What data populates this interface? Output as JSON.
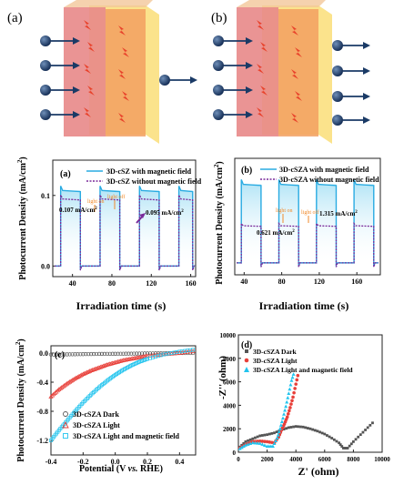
{
  "schematics": [
    {
      "label": "(a)",
      "transmitted_electrons": 1
    },
    {
      "label": "(b)",
      "transmitted_electrons": 4
    }
  ],
  "colors": {
    "layer_red": "#e88888",
    "layer_orange": "#f2a060",
    "layer_yellow": "#fbe38c",
    "electron": "#1a3a66",
    "lightning": "#e8412a",
    "line_cyan": "#29abe2",
    "line_purple": "#7a2a9a",
    "light_on": "#f08a2a",
    "dark_gray": "#555555",
    "light_red": "#e8403a",
    "light_mag_cyan": "#22c4ee"
  },
  "chart_data": [
    {
      "id": "a",
      "type": "line",
      "panel_label": "(a)",
      "xlabel": "Irradiation time (s)",
      "ylabel": "Photocurrent Density (mA/cm²)",
      "xlim": [
        20,
        165
      ],
      "ylim": [
        -0.015,
        0.15
      ],
      "xticks": [
        40,
        80,
        120,
        160
      ],
      "yticks": [
        0.0,
        0.1
      ],
      "ytick_labels": [
        "0.0",
        "0.1"
      ],
      "legend": [
        "3D-cSZ with magnetic field",
        "3D-cSZ without magnetic field"
      ],
      "light_periods": [
        [
          28,
          48
        ],
        [
          68,
          88
        ],
        [
          108,
          128
        ],
        [
          148,
          162
        ]
      ],
      "series": [
        {
          "name": "3D-cSZ with magnetic field",
          "on_level": 0.107,
          "off_level": 0.0
        },
        {
          "name": "3D-cSZ without magnetic field",
          "on_level": 0.095,
          "off_level": 0.0
        }
      ],
      "annotations": [
        "0.107 mA/cm",
        "0.095 mA/cm",
        "light on",
        "light off"
      ]
    },
    {
      "id": "b",
      "type": "line",
      "panel_label": "(b)",
      "xlabel": "Irradiation time (s)",
      "ylabel": "Photocurrent Density (mA/cm²)",
      "xlim": [
        30,
        185
      ],
      "ylim": [
        -0.2,
        1.75
      ],
      "xticks": [
        40,
        80,
        120,
        160
      ],
      "yticks": [],
      "legend": [
        "3D-cSZA with magnetic field",
        "3D-cSZA without magnetic field"
      ],
      "light_periods": [
        [
          37,
          58
        ],
        [
          77,
          98
        ],
        [
          117,
          138
        ],
        [
          157,
          178
        ]
      ],
      "series": [
        {
          "name": "3D-cSZA with magnetic field",
          "on_level": 1.315,
          "off_level": 0.0
        },
        {
          "name": "3D-cSZA without magnetic field",
          "on_level": 0.621,
          "off_level": 0.0
        }
      ],
      "annotations": [
        "0.621 mA/cm",
        "1.315 mA/cm",
        "light on",
        "light off"
      ]
    },
    {
      "id": "c",
      "type": "scatter",
      "panel_label": "(c)",
      "xlabel": "Potential (V vs. RHE)",
      "ylabel": "Photocurrent Density (mA/cm²)",
      "xlim": [
        -0.4,
        0.5
      ],
      "ylim": [
        -1.4,
        0.1
      ],
      "xticks": [
        -0.4,
        -0.2,
        0.0,
        0.2,
        0.4
      ],
      "xtick_labels": [
        "-0.4",
        "-0.2",
        "0.0",
        "0.2",
        "0.4"
      ],
      "yticks": [
        0.0,
        -0.4,
        -0.8,
        -1.2
      ],
      "ytick_labels": [
        "0.0",
        "-0.4",
        "-0.8",
        "-1.2"
      ],
      "series": [
        {
          "name": "3D-cSZA Dark",
          "x": [
            -0.4,
            -0.3,
            -0.2,
            -0.1,
            0.0,
            0.1,
            0.2,
            0.3,
            0.4,
            0.5
          ],
          "y": [
            -0.02,
            -0.018,
            -0.015,
            -0.012,
            -0.01,
            -0.008,
            -0.005,
            -0.003,
            0.0,
            0.0
          ]
        },
        {
          "name": "3D-cSZA Light",
          "x": [
            -0.4,
            -0.35,
            -0.3,
            -0.25,
            -0.2,
            -0.15,
            -0.1,
            -0.05,
            0.0,
            0.05,
            0.1,
            0.15,
            0.2,
            0.3,
            0.4,
            0.5
          ],
          "y": [
            -0.6,
            -0.5,
            -0.42,
            -0.35,
            -0.29,
            -0.24,
            -0.2,
            -0.16,
            -0.13,
            -0.1,
            -0.08,
            -0.06,
            -0.04,
            -0.02,
            0.0,
            0.03
          ]
        },
        {
          "name": "3D-cSZA Light and magnetic field",
          "x": [
            -0.4,
            -0.35,
            -0.3,
            -0.25,
            -0.2,
            -0.15,
            -0.1,
            -0.05,
            0.0,
            0.05,
            0.1,
            0.15,
            0.2,
            0.3,
            0.4,
            0.5
          ],
          "y": [
            -1.2,
            -1.06,
            -0.93,
            -0.8,
            -0.68,
            -0.57,
            -0.47,
            -0.38,
            -0.3,
            -0.23,
            -0.17,
            -0.12,
            -0.08,
            -0.02,
            0.02,
            0.05
          ]
        }
      ]
    },
    {
      "id": "d",
      "type": "scatter",
      "panel_label": "(d)",
      "xlabel": "Z' (ohm)",
      "ylabel": "-Z'' (ohm)",
      "xlim": [
        0,
        10000
      ],
      "ylim": [
        0,
        10000
      ],
      "xticks": [
        0,
        2000,
        4000,
        6000,
        8000,
        10000
      ],
      "yticks": [
        0,
        2000,
        4000,
        6000,
        8000,
        10000
      ],
      "series": [
        {
          "name": "3D-cSZA Dark",
          "x": [
            100,
            500,
            1000,
            1500,
            2000,
            2500,
            3000,
            3500,
            4000,
            4500,
            5000,
            5500,
            6000,
            6500,
            7000,
            7300,
            7600,
            8000,
            8500,
            9000,
            9500
          ],
          "y": [
            450,
            900,
            1150,
            1400,
            1500,
            1650,
            1900,
            2100,
            2200,
            2150,
            2000,
            1800,
            1550,
            1200,
            800,
            350,
            350,
            900,
            1500,
            2100,
            2700
          ]
        },
        {
          "name": "3D-cSZA Light",
          "x": [
            100,
            500,
            1000,
            1500,
            2000,
            2500,
            2800,
            3000,
            3200,
            3400,
            3600,
            3800,
            4000,
            4200
          ],
          "y": [
            350,
            650,
            900,
            950,
            900,
            800,
            1300,
            1900,
            2400,
            3000,
            3800,
            4700,
            5800,
            6900
          ]
        },
        {
          "name": "3D-cSZA Light and magnetic field",
          "x": [
            100,
            500,
            1000,
            1500,
            2000,
            2400,
            2700,
            2900,
            3100,
            3300,
            3500,
            3700,
            3900
          ],
          "y": [
            300,
            600,
            800,
            750,
            500,
            500,
            1200,
            2000,
            2900,
            3900,
            5000,
            6100,
            6900
          ]
        }
      ]
    }
  ]
}
